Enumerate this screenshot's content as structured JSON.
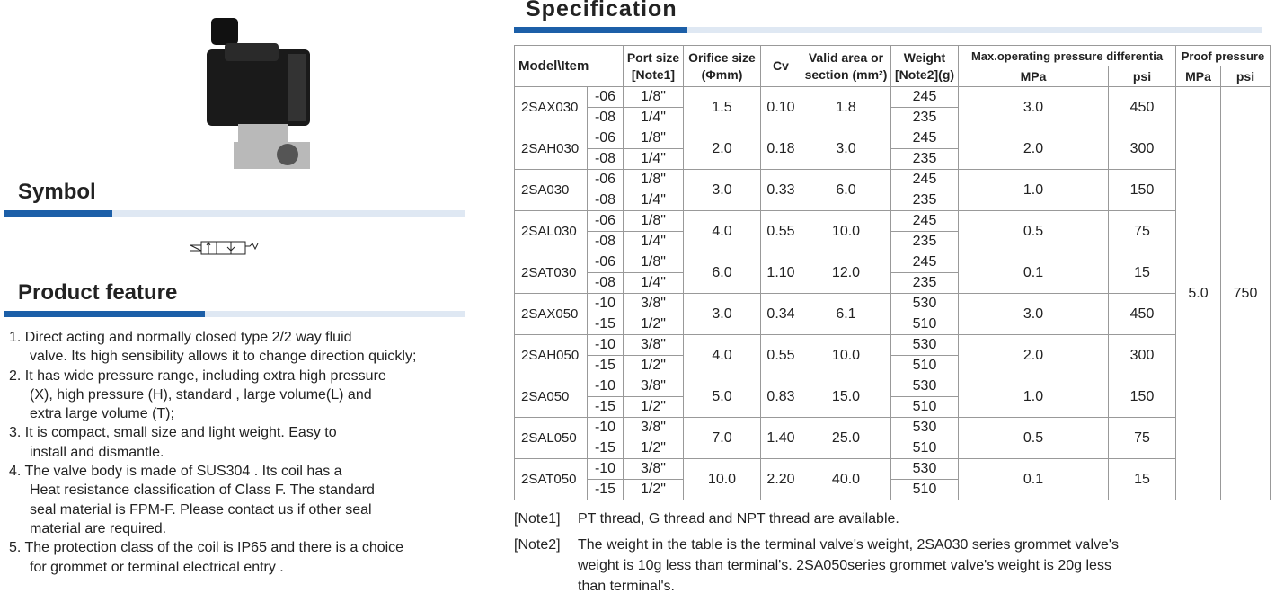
{
  "symbol": {
    "title": "Symbol"
  },
  "product_feature": {
    "title": "Product feature",
    "items": [
      {
        "lines": [
          "1. Direct acting and normally closed type 2/2 way fluid",
          "valve. Its high sensibility allows it to change direction quickly;"
        ]
      },
      {
        "lines": [
          "2. It has wide pressure range, including extra high pressure",
          "(X), high pressure (H), standard , large volume(L) and",
          "extra large volume (T);"
        ]
      },
      {
        "lines": [
          "3. It is compact, small size and light weight. Easy to",
          "install and dismantle."
        ]
      },
      {
        "lines": [
          "4. The valve body is made of SUS304 . Its coil has a",
          "Heat resistance classification of Class F. The standard",
          "seal material is FPM-F. Please contact us if other seal",
          "material are required."
        ]
      },
      {
        "lines": [
          "5. The protection class of the coil is IP65 and there is a choice",
          "for grommet or terminal electrical entry ."
        ]
      }
    ]
  },
  "specification": {
    "title": "Specification",
    "header": {
      "model": "Model\\Item",
      "port": [
        "Port size",
        "[Note1]"
      ],
      "orifice": [
        "Orifice size",
        "(Φmm)"
      ],
      "cv": "Cv",
      "area": [
        "Valid area or",
        "section (mm²)"
      ],
      "weight": [
        "Weight",
        "[Note2](g)"
      ],
      "max_pressure": "Max.operating pressure differentia",
      "max_mpa": "MPa",
      "max_psi": "psi",
      "proof_pressure": "Proof pressure",
      "proof_mpa": "MPa",
      "proof_psi": "psi"
    },
    "rows": [
      {
        "model": "2SAX030",
        "subs": [
          {
            "suffix": "-06",
            "port": "1/8\"",
            "weight": "245"
          },
          {
            "suffix": "-08",
            "port": "1/4\"",
            "weight": "235"
          }
        ],
        "orifice": "1.5",
        "cv": "0.10",
        "area": "1.8",
        "mpa": "3.0",
        "psi": "450"
      },
      {
        "model": "2SAH030",
        "subs": [
          {
            "suffix": "-06",
            "port": "1/8\"",
            "weight": "245"
          },
          {
            "suffix": "-08",
            "port": "1/4\"",
            "weight": "235"
          }
        ],
        "orifice": "2.0",
        "cv": "0.18",
        "area": "3.0",
        "mpa": "2.0",
        "psi": "300"
      },
      {
        "model": "2SA030",
        "subs": [
          {
            "suffix": "-06",
            "port": "1/8\"",
            "weight": "245"
          },
          {
            "suffix": "-08",
            "port": "1/4\"",
            "weight": "235"
          }
        ],
        "orifice": "3.0",
        "cv": "0.33",
        "area": "6.0",
        "mpa": "1.0",
        "psi": "150"
      },
      {
        "model": "2SAL030",
        "subs": [
          {
            "suffix": "-06",
            "port": "1/8\"",
            "weight": "245"
          },
          {
            "suffix": "-08",
            "port": "1/4\"",
            "weight": "235"
          }
        ],
        "orifice": "4.0",
        "cv": "0.55",
        "area": "10.0",
        "mpa": "0.5",
        "psi": "75"
      },
      {
        "model": "2SAT030",
        "subs": [
          {
            "suffix": "-06",
            "port": "1/8\"",
            "weight": "245"
          },
          {
            "suffix": "-08",
            "port": "1/4\"",
            "weight": "235"
          }
        ],
        "orifice": "6.0",
        "cv": "1.10",
        "area": "12.0",
        "mpa": "0.1",
        "psi": "15"
      },
      {
        "model": "2SAX050",
        "subs": [
          {
            "suffix": "-10",
            "port": "3/8\"",
            "weight": "530"
          },
          {
            "suffix": "-15",
            "port": "1/2\"",
            "weight": "510"
          }
        ],
        "orifice": "3.0",
        "cv": "0.34",
        "area": "6.1",
        "mpa": "3.0",
        "psi": "450"
      },
      {
        "model": "2SAH050",
        "subs": [
          {
            "suffix": "-10",
            "port": "3/8\"",
            "weight": "530"
          },
          {
            "suffix": "-15",
            "port": "1/2\"",
            "weight": "510"
          }
        ],
        "orifice": "4.0",
        "cv": "0.55",
        "area": "10.0",
        "mpa": "2.0",
        "psi": "300"
      },
      {
        "model": "2SA050",
        "subs": [
          {
            "suffix": "-10",
            "port": "3/8\"",
            "weight": "530"
          },
          {
            "suffix": "-15",
            "port": "1/2\"",
            "weight": "510"
          }
        ],
        "orifice": "5.0",
        "cv": "0.83",
        "area": "15.0",
        "mpa": "1.0",
        "psi": "150"
      },
      {
        "model": "2SAL050",
        "subs": [
          {
            "suffix": "-10",
            "port": "3/8\"",
            "weight": "530"
          },
          {
            "suffix": "-15",
            "port": "1/2\"",
            "weight": "510"
          }
        ],
        "orifice": "7.0",
        "cv": "1.40",
        "area": "25.0",
        "mpa": "0.5",
        "psi": "75"
      },
      {
        "model": "2SAT050",
        "subs": [
          {
            "suffix": "-10",
            "port": "3/8\"",
            "weight": "530"
          },
          {
            "suffix": "-15",
            "port": "1/2\"",
            "weight": "510"
          }
        ],
        "orifice": "10.0",
        "cv": "2.20",
        "area": "40.0",
        "mpa": "0.1",
        "psi": "15"
      }
    ],
    "proof": {
      "mpa": "5.0",
      "psi": "750"
    },
    "notes": [
      {
        "label": "[Note1]",
        "lines": [
          "PT thread, G thread and NPT thread are available."
        ]
      },
      {
        "label": "[Note2]",
        "lines": [
          "The weight in the table is the terminal valve's weight, 2SA030 series grommet valve's",
          "weight is 10g less than terminal's. 2SA050series grommet valve's weight is 20g less",
          "than terminal's."
        ]
      }
    ]
  }
}
